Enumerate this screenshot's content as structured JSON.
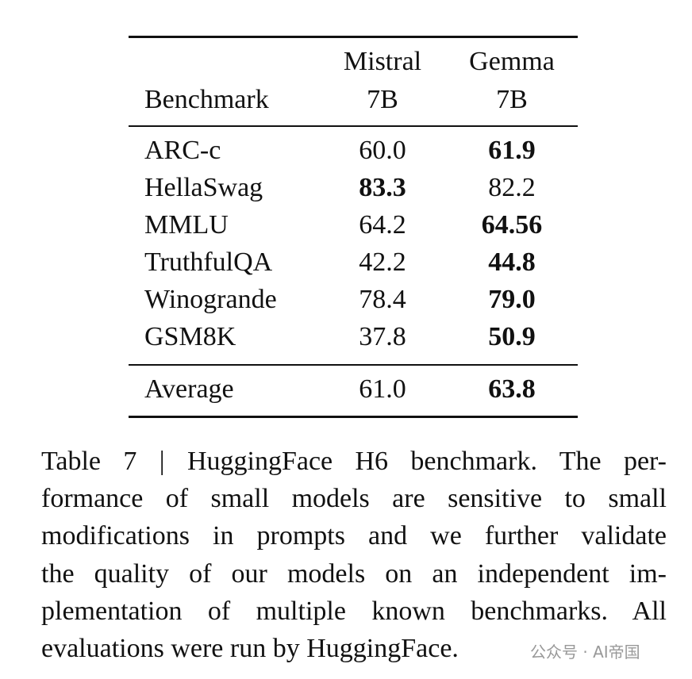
{
  "table": {
    "header": {
      "benchmark": "Benchmark",
      "mistral": [
        "Mistral",
        "7B"
      ],
      "gemma": [
        "Gemma",
        "7B"
      ]
    },
    "rows": [
      [
        "ARC-c",
        "60.0",
        "61.9"
      ],
      [
        "HellaSwag",
        "83.3",
        "82.2"
      ],
      [
        "MMLU",
        "64.2",
        "64.56"
      ],
      [
        "TruthfulQA",
        "42.2",
        "44.8"
      ],
      [
        "Winogrande",
        "78.4",
        "79.0"
      ],
      [
        "GSM8K",
        "37.8",
        "50.9"
      ]
    ],
    "average": [
      "Average",
      "61.0",
      "63.8"
    ]
  },
  "caption": [
    "Table 7 | HuggingFace H6 benchmark. The per-",
    "formance of small models are sensitive to small",
    "modifications in prompts and we further validate",
    "the quality of our models on an independent im-",
    "plementation of multiple known benchmarks. All",
    "evaluations were run by HuggingFace."
  ],
  "watermark": "公众号 · AI帝国"
}
